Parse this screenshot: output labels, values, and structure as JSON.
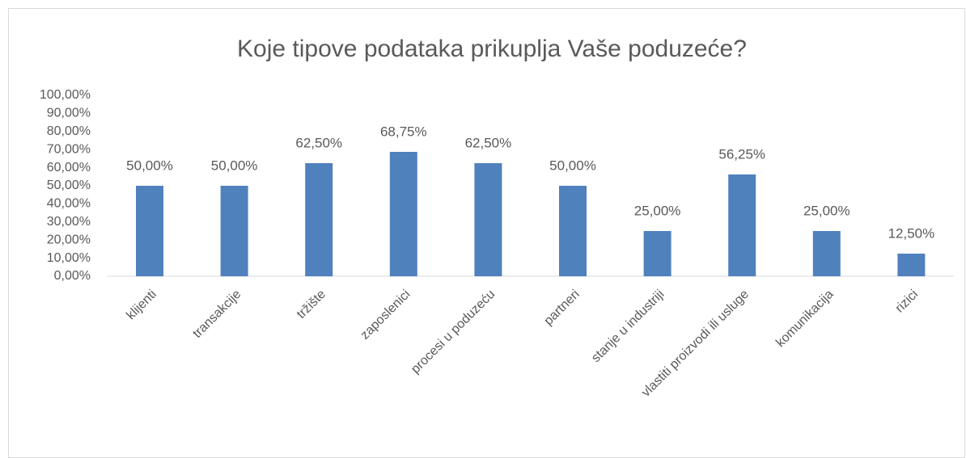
{
  "chart_data": {
    "type": "bar",
    "title": "Koje tipove podataka prikuplja Vaše poduzeće?",
    "categories": [
      "klijenti",
      "transakcije",
      "tržište",
      "zaposlenici",
      "procesi u poduzeću",
      "partneri",
      "stanje u industriji",
      "vlastiti proizvodi ili usluge",
      "komunikacija",
      "rizici"
    ],
    "values": [
      50,
      50,
      62.5,
      68.75,
      62.5,
      50,
      25,
      56.25,
      25,
      12.5
    ],
    "value_labels": [
      "50,00%",
      "50,00%",
      "62,50%",
      "68,75%",
      "62,50%",
      "50,00%",
      "25,00%",
      "56,25%",
      "25,00%",
      "12,50%"
    ],
    "color": "#4f81bd",
    "ylim": [
      0,
      100
    ],
    "yticks": [
      {
        "value": 0,
        "label": "0,00%"
      },
      {
        "value": 10,
        "label": "10,00%"
      },
      {
        "value": 20,
        "label": "20,00%"
      },
      {
        "value": 30,
        "label": "30,00%"
      },
      {
        "value": 40,
        "label": "40,00%"
      },
      {
        "value": 50,
        "label": "50,00%"
      },
      {
        "value": 60,
        "label": "60,00%"
      },
      {
        "value": 70,
        "label": "70,00%"
      },
      {
        "value": 80,
        "label": "80,00%"
      },
      {
        "value": 90,
        "label": "90,00%"
      },
      {
        "value": 100,
        "label": "100,00%"
      }
    ],
    "grid": false
  }
}
